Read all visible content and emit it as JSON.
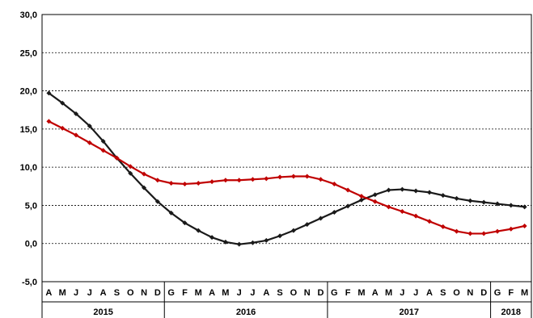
{
  "chart_data": {
    "type": "line",
    "title": "",
    "xlabel": "",
    "ylabel": "",
    "ylim": [
      -5,
      30
    ],
    "yticks": [
      "-5,0",
      "0,0",
      "5,0",
      "10,0",
      "15,0",
      "20,0",
      "25,0",
      "30,0"
    ],
    "grid": true,
    "legend": "none",
    "categories": [
      "A",
      "M",
      "J",
      "J",
      "A",
      "S",
      "O",
      "N",
      "D",
      "G",
      "F",
      "M",
      "A",
      "M",
      "J",
      "J",
      "A",
      "S",
      "O",
      "N",
      "D",
      "G",
      "F",
      "M",
      "A",
      "M",
      "J",
      "J",
      "A",
      "S",
      "O",
      "N",
      "D",
      "G",
      "F",
      "M"
    ],
    "years": [
      {
        "label": "2015",
        "count": 9
      },
      {
        "label": "2016",
        "count": 12
      },
      {
        "label": "2017",
        "count": 12
      },
      {
        "label": "2018",
        "count": 3
      }
    ],
    "series": [
      {
        "color": "#1a1a1a",
        "values": [
          19.7,
          18.4,
          17.0,
          15.4,
          13.4,
          11.2,
          9.2,
          7.3,
          5.5,
          4.0,
          2.7,
          1.7,
          0.8,
          0.2,
          -0.1,
          0.1,
          0.4,
          1.0,
          1.7,
          2.5,
          3.3,
          4.1,
          4.9,
          5.7,
          6.4,
          7.0,
          7.1,
          6.9,
          6.7,
          6.3,
          5.9,
          5.6,
          5.4,
          5.2,
          5.0,
          4.8
        ]
      },
      {
        "color": "#c00000",
        "values": [
          16.0,
          15.1,
          14.2,
          13.2,
          12.2,
          11.2,
          10.1,
          9.1,
          8.3,
          7.9,
          7.8,
          7.9,
          8.1,
          8.3,
          8.3,
          8.4,
          8.5,
          8.7,
          8.8,
          8.8,
          8.4,
          7.8,
          7.0,
          6.2,
          5.5,
          4.8,
          4.2,
          3.6,
          2.9,
          2.2,
          1.6,
          1.3,
          1.3,
          1.6,
          1.9,
          2.3
        ]
      }
    ]
  }
}
